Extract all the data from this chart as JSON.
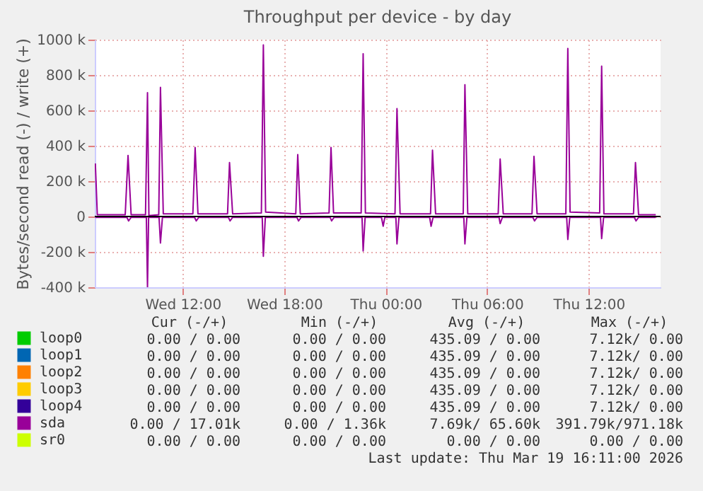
{
  "chart_data": {
    "type": "line",
    "title": "Throughput per device - by day",
    "ylabel": "Bytes/second read (-) / write (+)",
    "xlim": [
      "2026-03-18T06:48",
      "2026-03-19T16:15"
    ],
    "xticks": [
      {
        "value": "2026-03-18T12:00",
        "label": "Wed 12:00"
      },
      {
        "value": "2026-03-18T18:00",
        "label": "Wed 18:00"
      },
      {
        "value": "2026-03-19T00:00",
        "label": "Thu 00:00"
      },
      {
        "value": "2026-03-19T06:00",
        "label": "Thu 06:00"
      },
      {
        "value": "2026-03-19T12:00",
        "label": "Thu 12:00"
      }
    ],
    "ylim": [
      -400000,
      1000000
    ],
    "yticks": [
      {
        "value": -400000,
        "label": "-400 k"
      },
      {
        "value": -200000,
        "label": "-200 k"
      },
      {
        "value": 0,
        "label": "0"
      },
      {
        "value": 200000,
        "label": "200 k"
      },
      {
        "value": 400000,
        "label": "400 k"
      },
      {
        "value": 600000,
        "label": "600 k"
      },
      {
        "value": 800000,
        "label": "800 k"
      },
      {
        "value": 1000000,
        "label": "1000 k"
      }
    ],
    "grid": true,
    "legend": "bottom left",
    "ref_lines": [
      {
        "axis": "y",
        "value": 0,
        "color": "#000000"
      }
    ],
    "series": [
      {
        "name": "loop0",
        "color": "#00cc00",
        "values": [
          null,
          null
        ]
      },
      {
        "name": "loop1",
        "color": "#0066b3",
        "values": [
          null,
          null
        ]
      },
      {
        "name": "loop2",
        "color": "#ff8000",
        "values": [
          null,
          null
        ]
      },
      {
        "name": "loop3",
        "color": "#ffcc00",
        "values": [
          null,
          null
        ]
      },
      {
        "name": "loop4",
        "color": "#330099",
        "values": [
          null,
          null
        ]
      },
      {
        "name": "sda",
        "color": "#990099",
        "x": [
          "2026-03-18T06:50",
          "2026-03-18T06:57",
          "2026-03-18T08:36",
          "2026-03-18T08:46",
          "2026-03-18T08:57",
          "2026-03-18T09:48",
          "2026-03-18T09:55",
          "2026-03-18T10:00",
          "2026-03-18T10:35",
          "2026-03-18T10:41",
          "2026-03-18T10:51",
          "2026-03-18T12:36",
          "2026-03-18T12:44",
          "2026-03-18T12:54",
          "2026-03-18T14:39",
          "2026-03-18T14:46",
          "2026-03-18T14:57",
          "2026-03-18T16:39",
          "2026-03-18T16:46",
          "2026-03-18T16:54",
          "2026-03-18T18:41",
          "2026-03-18T18:48",
          "2026-03-18T18:57",
          "2026-03-18T20:39",
          "2026-03-18T20:46",
          "2026-03-18T20:55",
          "2026-03-18T22:33",
          "2026-03-18T22:40",
          "2026-03-18T22:48",
          "2026-03-19T00:33",
          "2026-03-19T00:40",
          "2026-03-19T00:51",
          "2026-03-19T02:39",
          "2026-03-19T02:46",
          "2026-03-19T02:57",
          "2026-03-19T04:35",
          "2026-03-19T04:41",
          "2026-03-19T04:51",
          "2026-03-19T06:39",
          "2026-03-19T06:46",
          "2026-03-19T06:57",
          "2026-03-19T08:39",
          "2026-03-19T08:46",
          "2026-03-19T08:57",
          "2026-03-19T10:39",
          "2026-03-19T10:46",
          "2026-03-19T10:54",
          "2026-03-19T12:39",
          "2026-03-19T12:46",
          "2026-03-19T12:54",
          "2026-03-19T14:39",
          "2026-03-19T14:46",
          "2026-03-19T14:57",
          "2026-03-19T15:58"
        ],
        "values": [
          300000,
          10000,
          10000,
          345000,
          10000,
          10000,
          700000,
          5000,
          10000,
          730000,
          15000,
          15000,
          390000,
          15000,
          15000,
          305000,
          15000,
          20000,
          970000,
          25000,
          15000,
          350000,
          15000,
          20000,
          390000,
          20000,
          20000,
          920000,
          20000,
          15000,
          610000,
          15000,
          15000,
          375000,
          15000,
          15000,
          745000,
          15000,
          15000,
          325000,
          15000,
          15000,
          340000,
          15000,
          15000,
          950000,
          25000,
          20000,
          850000,
          15000,
          15000,
          305000,
          10000,
          10000
        ]
      },
      {
        "color": "#990099",
        "x": [
          "2026-03-18T06:50",
          "2026-03-18T08:42",
          "2026-03-18T08:48",
          "2026-03-18T08:57",
          "2026-03-18T09:51",
          "2026-03-18T09:55",
          "2026-03-18T09:59",
          "2026-03-18T10:36",
          "2026-03-18T10:41",
          "2026-03-18T10:48",
          "2026-03-18T12:42",
          "2026-03-18T12:48",
          "2026-03-18T12:57",
          "2026-03-18T14:42",
          "2026-03-18T14:48",
          "2026-03-18T14:57",
          "2026-03-18T16:42",
          "2026-03-18T16:46",
          "2026-03-18T16:53",
          "2026-03-18T18:45",
          "2026-03-18T18:51",
          "2026-03-18T19:00",
          "2026-03-18T20:43",
          "2026-03-18T20:48",
          "2026-03-18T20:57",
          "2026-03-18T22:36",
          "2026-03-18T22:40",
          "2026-03-18T22:47",
          "2026-03-18T23:45",
          "2026-03-18T23:51",
          "2026-03-18T23:57",
          "2026-03-19T00:36",
          "2026-03-19T00:40",
          "2026-03-19T00:47",
          "2026-03-19T02:36",
          "2026-03-19T02:41",
          "2026-03-19T02:48",
          "2026-03-19T04:37",
          "2026-03-19T04:41",
          "2026-03-19T04:48",
          "2026-03-19T06:42",
          "2026-03-19T06:46",
          "2026-03-19T06:54",
          "2026-03-19T08:42",
          "2026-03-19T08:48",
          "2026-03-19T08:57",
          "2026-03-19T10:42",
          "2026-03-19T10:46",
          "2026-03-19T10:53",
          "2026-03-19T12:42",
          "2026-03-19T12:46",
          "2026-03-19T12:53",
          "2026-03-19T14:42",
          "2026-03-19T14:48",
          "2026-03-19T14:57",
          "2026-03-19T15:58"
        ],
        "values": [
          -5000,
          -5000,
          -25000,
          -5000,
          -5000,
          -400000,
          -5000,
          -5000,
          -150000,
          -5000,
          -5000,
          -25000,
          -5000,
          -5000,
          -25000,
          -5000,
          -5000,
          -225000,
          -5000,
          -5000,
          -25000,
          -5000,
          -5000,
          -25000,
          -5000,
          -5000,
          -195000,
          -5000,
          -5000,
          -55000,
          -5000,
          -5000,
          -155000,
          -5000,
          -5000,
          -55000,
          -5000,
          -5000,
          -155000,
          -5000,
          -5000,
          -40000,
          -5000,
          -5000,
          -25000,
          -5000,
          -5000,
          -130000,
          -5000,
          -5000,
          -125000,
          -5000,
          -5000,
          -25000,
          -5000,
          -5000
        ]
      },
      {
        "name": "sr0",
        "color": "#ccff00",
        "values": [
          null,
          null
        ]
      }
    ],
    "annotations": [
      "Cur (-/+)",
      "Min (-/+)",
      "Avg (-/+)",
      "Max (-/+)",
      "0.00 /  0.00",
      "0.00 /  0.00",
      "435.09 /  0.00",
      "7.12k/  0.00",
      "0.00 /  0.00",
      "0.00 /  0.00",
      "435.09 /  0.00",
      "7.12k/  0.00",
      "0.00 /  0.00",
      "0.00 /  0.00",
      "435.09 /  0.00",
      "7.12k/  0.00",
      "0.00 /  0.00",
      "0.00 /  0.00",
      "435.09 /  0.00",
      "7.12k/  0.00",
      "0.00 /  0.00",
      "0.00 /  0.00",
      "435.09 /  0.00",
      "7.12k/  0.00",
      "0.00 / 17.01k",
      "0.00 /  1.36k",
      "7.69k/ 65.60k",
      "391.79k/971.18k",
      "0.00 /  0.00",
      "0.00 /  0.00",
      "0.00 /  0.00",
      "0.00 /  0.00",
      "Last update: Thu Mar 19 16:11:00 2026"
    ]
  }
}
